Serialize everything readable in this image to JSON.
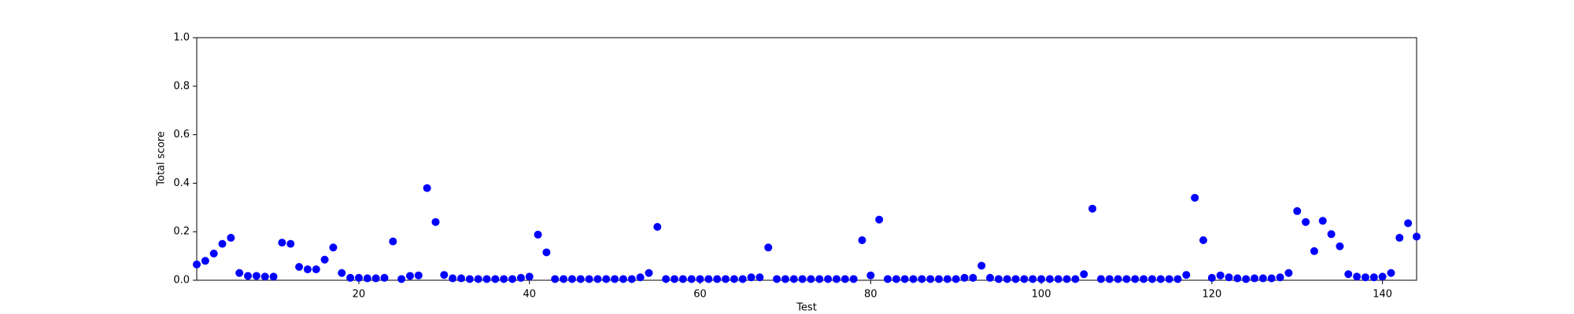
{
  "chart_data": {
    "type": "scatter",
    "xlabel": "Test",
    "ylabel": "Total score",
    "color": "#0000ff",
    "x": [
      1,
      2,
      3,
      4,
      5,
      6,
      7,
      8,
      9,
      10,
      11,
      12,
      13,
      14,
      15,
      16,
      17,
      18,
      19,
      20,
      21,
      22,
      23,
      24,
      25,
      26,
      27,
      28,
      29,
      30,
      31,
      32,
      33,
      34,
      35,
      36,
      37,
      38,
      39,
      40,
      41,
      42,
      43,
      44,
      45,
      46,
      47,
      48,
      49,
      50,
      51,
      52,
      53,
      54,
      55,
      56,
      57,
      58,
      59,
      60,
      61,
      62,
      63,
      64,
      65,
      66,
      67,
      68,
      69,
      70,
      71,
      72,
      73,
      74,
      75,
      76,
      77,
      78,
      79,
      80,
      81,
      82,
      83,
      84,
      85,
      86,
      87,
      88,
      89,
      90,
      91,
      92,
      93,
      94,
      95,
      96,
      97,
      98,
      99,
      100,
      101,
      102,
      103,
      104,
      105,
      106,
      107,
      108,
      109,
      110,
      111,
      112,
      113,
      114,
      115,
      116,
      117,
      118,
      119,
      120,
      121,
      122,
      123,
      124,
      125,
      126,
      127,
      128,
      129,
      130,
      131,
      132,
      133,
      134,
      135,
      136,
      137,
      138,
      139,
      140,
      141,
      142,
      143,
      144
    ],
    "values": [
      0.065,
      0.08,
      0.11,
      0.15,
      0.175,
      0.03,
      0.018,
      0.018,
      0.015,
      0.015,
      0.155,
      0.15,
      0.055,
      0.045,
      0.045,
      0.085,
      0.135,
      0.03,
      0.01,
      0.01,
      0.008,
      0.008,
      0.01,
      0.16,
      0.005,
      0.018,
      0.02,
      0.38,
      0.24,
      0.022,
      0.008,
      0.008,
      0.005,
      0.005,
      0.005,
      0.005,
      0.005,
      0.005,
      0.01,
      0.015,
      0.188,
      0.115,
      0.005,
      0.005,
      0.005,
      0.005,
      0.005,
      0.005,
      0.005,
      0.005,
      0.005,
      0.005,
      0.012,
      0.03,
      0.22,
      0.005,
      0.005,
      0.005,
      0.005,
      0.005,
      0.005,
      0.005,
      0.005,
      0.005,
      0.005,
      0.012,
      0.012,
      0.135,
      0.005,
      0.005,
      0.005,
      0.005,
      0.005,
      0.005,
      0.005,
      0.005,
      0.005,
      0.005,
      0.165,
      0.02,
      0.25,
      0.005,
      0.005,
      0.005,
      0.005,
      0.005,
      0.005,
      0.005,
      0.005,
      0.005,
      0.01,
      0.01,
      0.06,
      0.01,
      0.005,
      0.005,
      0.005,
      0.005,
      0.005,
      0.005,
      0.005,
      0.005,
      0.005,
      0.005,
      0.025,
      0.295,
      0.005,
      0.005,
      0.005,
      0.005,
      0.005,
      0.005,
      0.005,
      0.005,
      0.005,
      0.005,
      0.022,
      0.34,
      0.165,
      0.01,
      0.02,
      0.012,
      0.008,
      0.005,
      0.008,
      0.008,
      0.008,
      0.012,
      0.03,
      0.285,
      0.24,
      0.12,
      0.245,
      0.19,
      0.14,
      0.025,
      0.015,
      0.012,
      0.012,
      0.015,
      0.03,
      0.175,
      0.235,
      0.18
    ],
    "xlim": [
      1,
      144
    ],
    "xticks": [
      20,
      40,
      60,
      80,
      100,
      120,
      140
    ],
    "ylim": [
      0,
      1
    ],
    "yticks": [
      {
        "value": 0,
        "label": "0.0"
      },
      0.2,
      0.4,
      0.6,
      0.8,
      {
        "value": 1,
        "label": "1.0"
      }
    ]
  }
}
